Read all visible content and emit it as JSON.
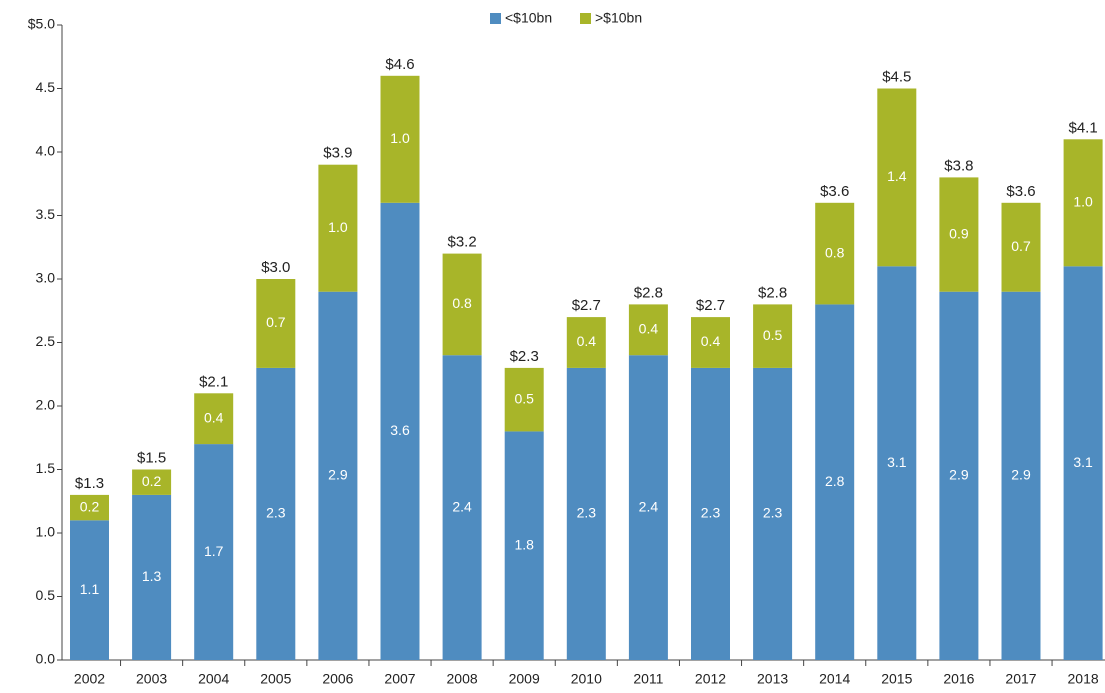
{
  "chart_data": {
    "type": "stacked_bar",
    "categories": [
      "2002",
      "2003",
      "2004",
      "2005",
      "2006",
      "2007",
      "2008",
      "2009",
      "2010",
      "2011",
      "2012",
      "2013",
      "2014",
      "2015",
      "2016",
      "2017",
      "2018"
    ],
    "series": [
      {
        "name": "<$10bn",
        "color": "#4f8cc0",
        "values": [
          1.1,
          1.3,
          1.7,
          2.3,
          2.9,
          3.6,
          2.4,
          1.8,
          2.3,
          2.4,
          2.3,
          2.3,
          2.8,
          3.1,
          2.9,
          2.9,
          3.1
        ],
        "value_labels": [
          "1.1",
          "1.3",
          "1.7",
          "2.3",
          "2.9",
          "3.6",
          "2.4",
          "1.8",
          "2.3",
          "2.4",
          "2.3",
          "2.3",
          "2.8",
          "3.1",
          "2.9",
          "2.9",
          "3.1"
        ]
      },
      {
        "name": ">$10bn",
        "color": "#a8b529",
        "values": [
          0.2,
          0.2,
          0.4,
          0.7,
          1.0,
          1.0,
          0.8,
          0.5,
          0.4,
          0.4,
          0.4,
          0.5,
          0.8,
          1.4,
          0.9,
          0.7,
          1.0
        ],
        "value_labels": [
          "0.2",
          "0.2",
          "0.4",
          "0.7",
          "1.0",
          "1.0",
          "0.8",
          "0.5",
          "0.4",
          "0.4",
          "0.4",
          "0.5",
          "0.8",
          "1.4",
          "0.9",
          "0.7",
          "1.0"
        ]
      }
    ],
    "total_labels": [
      "$1.3",
      "$1.5",
      "$2.1",
      "$3.0",
      "$3.9",
      "$4.6",
      "$3.2",
      "$2.3",
      "$2.7",
      "$2.8",
      "$2.7",
      "$2.8",
      "$3.6",
      "$4.5",
      "$3.8",
      "$3.6",
      "$4.1"
    ],
    "ylim": [
      0,
      5
    ],
    "yticks": [
      {
        "value": 0,
        "label": "0.0"
      },
      0.5,
      {
        "value": 1,
        "label": "1.0"
      },
      1.5,
      {
        "value": 2,
        "label": "2.0"
      },
      2.5,
      {
        "value": 3,
        "label": "3.0"
      },
      3.5,
      {
        "value": 4,
        "label": "4.0"
      },
      4.5,
      {
        "value": 5,
        "label": "$5.0"
      }
    ],
    "legend": "top-center"
  }
}
